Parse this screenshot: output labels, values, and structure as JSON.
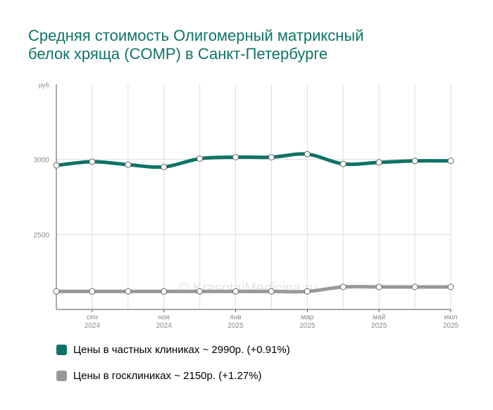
{
  "chart_data": {
    "type": "line",
    "title_line1": "Средняя стоимость Олигомерный матриксный",
    "title_line2": "белок хряща (COMP) в Санкт-Петербурге",
    "ylabel": "руб.",
    "y_ticks": [
      2500,
      3000
    ],
    "ylim": [
      2000,
      3500
    ],
    "x_ticks": [
      {
        "month": "сен",
        "year": "2024"
      },
      {
        "month": "ноя",
        "year": "2024"
      },
      {
        "month": "янв",
        "year": "2025"
      },
      {
        "month": "мар",
        "year": "2025"
      },
      {
        "month": "май",
        "year": "2025"
      },
      {
        "month": "июл",
        "year": "2025"
      }
    ],
    "x": [
      "2024-08",
      "2024-09",
      "2024-10",
      "2024-11",
      "2024-12",
      "2025-01",
      "2025-02",
      "2025-03",
      "2025-04",
      "2025-05",
      "2025-06",
      "2025-07"
    ],
    "grid": true,
    "watermark": "© KrasotaiMedicina.ru",
    "series": [
      {
        "name": "Цены в частных клиниках ~ 2990р. (+0.91%)",
        "color": "#0e7367",
        "values": [
          2960,
          2985,
          2965,
          2950,
          3005,
          3015,
          3015,
          3035,
          2970,
          2980,
          2990,
          2990
        ]
      },
      {
        "name": "Цены в госклиниках ~ 2150р. (+1.27%)",
        "color": "#999999",
        "values": [
          2120,
          2120,
          2120,
          2120,
          2120,
          2120,
          2120,
          2120,
          2150,
          2150,
          2150,
          2150
        ]
      }
    ]
  }
}
